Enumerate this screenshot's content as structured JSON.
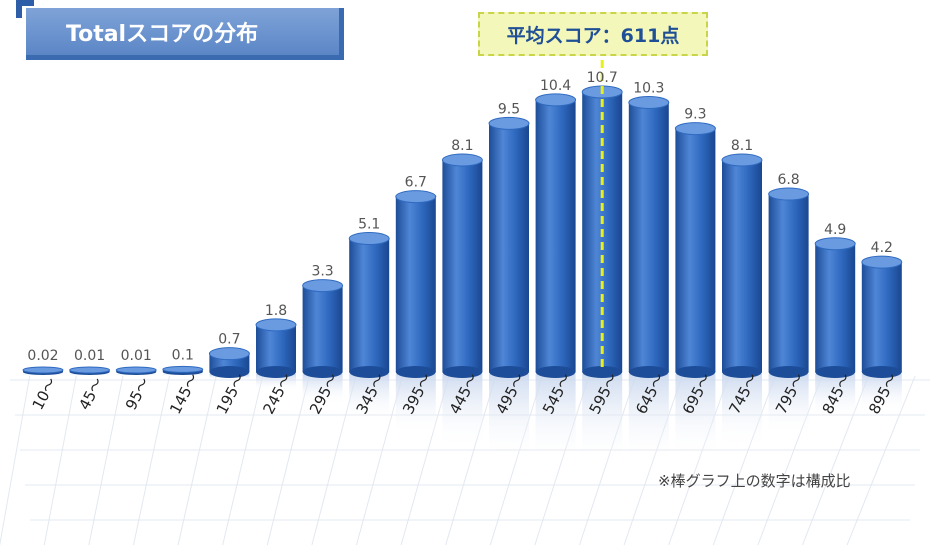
{
  "title": "Totalスコアの分布",
  "average_label": "平均スコア：611点",
  "footnote": "※棒グラフ上の数字は構成比",
  "colors": {
    "bar": "#2f6ac0",
    "bar_dark": "#1d4d98",
    "bar_light": "#6a9be0",
    "value_text": "#555555",
    "tick_text": "#222222",
    "avg_line": "#e8f01a"
  },
  "chart_data": {
    "type": "bar",
    "title": "Totalスコアの分布",
    "categories": [
      "10～",
      "45～",
      "95～",
      "145～",
      "195～",
      "245～",
      "295～",
      "345～",
      "395～",
      "445～",
      "495～",
      "545～",
      "595～",
      "645～",
      "695～",
      "745～",
      "795～",
      "845～",
      "895～"
    ],
    "values": [
      0.02,
      0.01,
      0.01,
      0.1,
      0.7,
      1.8,
      3.3,
      5.1,
      6.7,
      8.1,
      9.5,
      10.4,
      10.7,
      10.3,
      9.3,
      8.1,
      6.8,
      4.9,
      4.2
    ],
    "value_labels": [
      "0.02",
      "0.01",
      "0.01",
      "0.1",
      "0.7",
      "1.8",
      "3.3",
      "5.1",
      "6.7",
      "8.1",
      "9.5",
      "10.4",
      "10.7",
      "10.3",
      "9.3",
      "8.1",
      "6.8",
      "4.9",
      "4.2"
    ],
    "average_score": 611,
    "xlabel": "",
    "ylabel": "",
    "ylim": [
      0,
      10.7
    ],
    "grid": false,
    "legend": "none"
  }
}
